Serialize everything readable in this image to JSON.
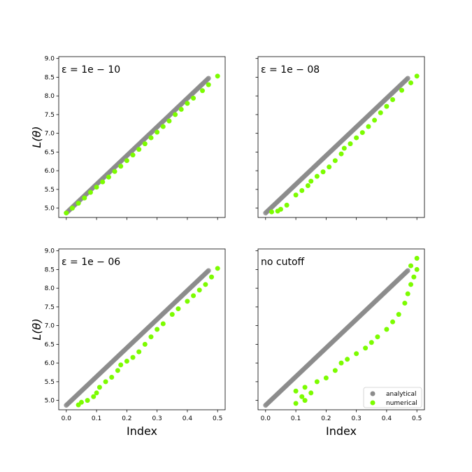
{
  "colors": {
    "analytical": "#8c8c8c",
    "numerical": "#7cfc00"
  },
  "x_label": "Index",
  "y_label": "L(θ)",
  "x_ticks": [
    "0.0",
    "0.1",
    "0.2",
    "0.3",
    "0.4",
    "0.5"
  ],
  "y_ticks": [
    "5.0",
    "5.5",
    "6.0",
    "6.5",
    "7.0",
    "7.5",
    "8.0",
    "8.5",
    "9.0"
  ],
  "legend": {
    "analytical": "analytical",
    "numerical": "numerical",
    "placement": "lower-right of last panel"
  },
  "chart_data": [
    {
      "type": "scatter",
      "annotation": "ε = 1e − 10",
      "xlim": [
        -0.025,
        0.525
      ],
      "ylim": [
        4.75,
        9.05
      ],
      "series": [
        {
          "name": "analytical",
          "trend": [
            [
              0.0,
              4.87
            ],
            [
              0.47,
              8.47
            ]
          ]
        },
        {
          "name": "numerical",
          "points": [
            [
              0.0,
              4.87
            ],
            [
              0.02,
              5.0
            ],
            [
              0.04,
              5.13
            ],
            [
              0.06,
              5.27
            ],
            [
              0.08,
              5.42
            ],
            [
              0.1,
              5.56
            ],
            [
              0.12,
              5.7
            ],
            [
              0.14,
              5.83
            ],
            [
              0.16,
              5.98
            ],
            [
              0.18,
              6.12
            ],
            [
              0.2,
              6.27
            ],
            [
              0.22,
              6.42
            ],
            [
              0.24,
              6.57
            ],
            [
              0.26,
              6.72
            ],
            [
              0.28,
              6.88
            ],
            [
              0.3,
              7.03
            ],
            [
              0.32,
              7.18
            ],
            [
              0.34,
              7.33
            ],
            [
              0.36,
              7.5
            ],
            [
              0.38,
              7.64
            ],
            [
              0.4,
              7.8
            ],
            [
              0.42,
              7.94
            ],
            [
              0.45,
              8.14
            ],
            [
              0.47,
              8.3
            ],
            [
              0.5,
              8.53
            ]
          ]
        }
      ]
    },
    {
      "type": "scatter",
      "annotation": "ε = 1e − 08",
      "xlim": [
        -0.025,
        0.525
      ],
      "ylim": [
        4.75,
        9.05
      ],
      "series": [
        {
          "name": "analytical",
          "trend": [
            [
              0.0,
              4.87
            ],
            [
              0.47,
              8.47
            ]
          ]
        },
        {
          "name": "numerical",
          "points": [
            [
              0.02,
              4.9
            ],
            [
              0.04,
              4.92
            ],
            [
              0.05,
              4.97
            ],
            [
              0.07,
              5.08
            ],
            [
              0.1,
              5.35
            ],
            [
              0.12,
              5.47
            ],
            [
              0.14,
              5.6
            ],
            [
              0.15,
              5.72
            ],
            [
              0.17,
              5.85
            ],
            [
              0.19,
              5.97
            ],
            [
              0.21,
              6.1
            ],
            [
              0.23,
              6.27
            ],
            [
              0.25,
              6.45
            ],
            [
              0.26,
              6.6
            ],
            [
              0.28,
              6.72
            ],
            [
              0.3,
              6.88
            ],
            [
              0.32,
              7.02
            ],
            [
              0.34,
              7.18
            ],
            [
              0.36,
              7.35
            ],
            [
              0.38,
              7.55
            ],
            [
              0.4,
              7.72
            ],
            [
              0.42,
              7.9
            ],
            [
              0.45,
              8.15
            ],
            [
              0.48,
              8.35
            ],
            [
              0.5,
              8.53
            ]
          ]
        }
      ]
    },
    {
      "type": "scatter",
      "annotation": "ε = 1e − 06",
      "xlim": [
        -0.025,
        0.525
      ],
      "ylim": [
        4.75,
        9.05
      ],
      "series": [
        {
          "name": "analytical",
          "trend": [
            [
              0.0,
              4.87
            ],
            [
              0.47,
              8.47
            ]
          ]
        },
        {
          "name": "numerical",
          "points": [
            [
              0.04,
              4.88
            ],
            [
              0.05,
              4.95
            ],
            [
              0.07,
              5.0
            ],
            [
              0.09,
              5.1
            ],
            [
              0.1,
              5.2
            ],
            [
              0.11,
              5.35
            ],
            [
              0.13,
              5.5
            ],
            [
              0.15,
              5.62
            ],
            [
              0.17,
              5.8
            ],
            [
              0.18,
              5.95
            ],
            [
              0.2,
              6.05
            ],
            [
              0.22,
              6.15
            ],
            [
              0.24,
              6.3
            ],
            [
              0.26,
              6.5
            ],
            [
              0.28,
              6.7
            ],
            [
              0.3,
              6.9
            ],
            [
              0.32,
              7.05
            ],
            [
              0.35,
              7.3
            ],
            [
              0.37,
              7.45
            ],
            [
              0.4,
              7.65
            ],
            [
              0.42,
              7.8
            ],
            [
              0.44,
              7.95
            ],
            [
              0.46,
              8.1
            ],
            [
              0.48,
              8.3
            ],
            [
              0.5,
              8.53
            ]
          ]
        }
      ]
    },
    {
      "type": "scatter",
      "annotation": "no cutoff",
      "xlim": [
        -0.025,
        0.525
      ],
      "ylim": [
        4.75,
        9.05
      ],
      "series": [
        {
          "name": "analytical",
          "trend": [
            [
              0.0,
              4.87
            ],
            [
              0.47,
              8.47
            ]
          ]
        },
        {
          "name": "numerical",
          "points": [
            [
              0.1,
              4.92
            ],
            [
              0.1,
              5.25
            ],
            [
              0.12,
              5.1
            ],
            [
              0.13,
              5.0
            ],
            [
              0.13,
              5.35
            ],
            [
              0.15,
              5.2
            ],
            [
              0.17,
              5.5
            ],
            [
              0.2,
              5.6
            ],
            [
              0.23,
              5.8
            ],
            [
              0.25,
              6.0
            ],
            [
              0.27,
              6.1
            ],
            [
              0.3,
              6.25
            ],
            [
              0.33,
              6.4
            ],
            [
              0.35,
              6.55
            ],
            [
              0.37,
              6.7
            ],
            [
              0.4,
              6.9
            ],
            [
              0.42,
              7.1
            ],
            [
              0.44,
              7.3
            ],
            [
              0.46,
              7.6
            ],
            [
              0.47,
              7.85
            ],
            [
              0.48,
              8.1
            ],
            [
              0.49,
              8.3
            ],
            [
              0.5,
              8.5
            ],
            [
              0.5,
              8.8
            ],
            [
              0.48,
              8.6
            ]
          ]
        }
      ]
    }
  ]
}
